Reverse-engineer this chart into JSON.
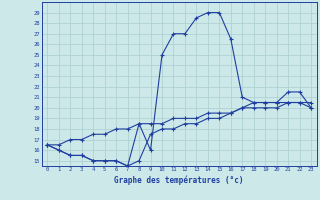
{
  "hours": [
    0,
    1,
    2,
    3,
    4,
    5,
    6,
    7,
    8,
    9,
    10,
    11,
    12,
    13,
    14,
    15,
    16,
    17,
    18,
    19,
    20,
    21,
    22,
    23
  ],
  "main_temps": [
    16.5,
    16.0,
    15.5,
    15.5,
    15.0,
    15.0,
    15.0,
    14.5,
    18.5,
    16.0,
    25.0,
    27.0,
    27.0,
    28.5,
    29.0,
    29.0,
    26.5,
    21.0,
    20.5,
    20.5,
    20.5,
    21.5,
    21.5,
    20.0
  ],
  "min_temps": [
    16.5,
    16.0,
    15.5,
    15.5,
    15.0,
    15.0,
    15.0,
    14.5,
    15.0,
    17.5,
    18.0,
    18.0,
    18.5,
    18.5,
    19.0,
    19.0,
    19.5,
    20.0,
    20.5,
    20.5,
    20.5,
    20.5,
    20.5,
    20.0
  ],
  "max_temps": [
    16.5,
    16.5,
    17.0,
    17.0,
    17.5,
    17.5,
    18.0,
    18.0,
    18.5,
    18.5,
    18.5,
    19.0,
    19.0,
    19.0,
    19.5,
    19.5,
    19.5,
    20.0,
    20.0,
    20.0,
    20.0,
    20.5,
    20.5,
    20.5
  ],
  "line_color": "#1f3fa0",
  "bg_color": "#cce8e8",
  "grid_color": "#aacece",
  "xlabel": "Graphe des températures (°c)",
  "ylim": [
    14.5,
    30.0
  ],
  "xlim": [
    -0.5,
    23.5
  ],
  "yticks": [
    15,
    16,
    17,
    18,
    19,
    20,
    21,
    22,
    23,
    24,
    25,
    26,
    27,
    28,
    29
  ],
  "xticks": [
    0,
    1,
    2,
    3,
    4,
    5,
    6,
    7,
    8,
    9,
    10,
    11,
    12,
    13,
    14,
    15,
    16,
    17,
    18,
    19,
    20,
    21,
    22,
    23
  ],
  "xtick_labels": [
    "0",
    "1",
    "2",
    "3",
    "4",
    "5",
    "6",
    "7",
    "8",
    "9",
    "10",
    "11",
    "12",
    "13",
    "14",
    "15",
    "16",
    "17",
    "18",
    "19",
    "20",
    "21",
    "22",
    "23"
  ]
}
